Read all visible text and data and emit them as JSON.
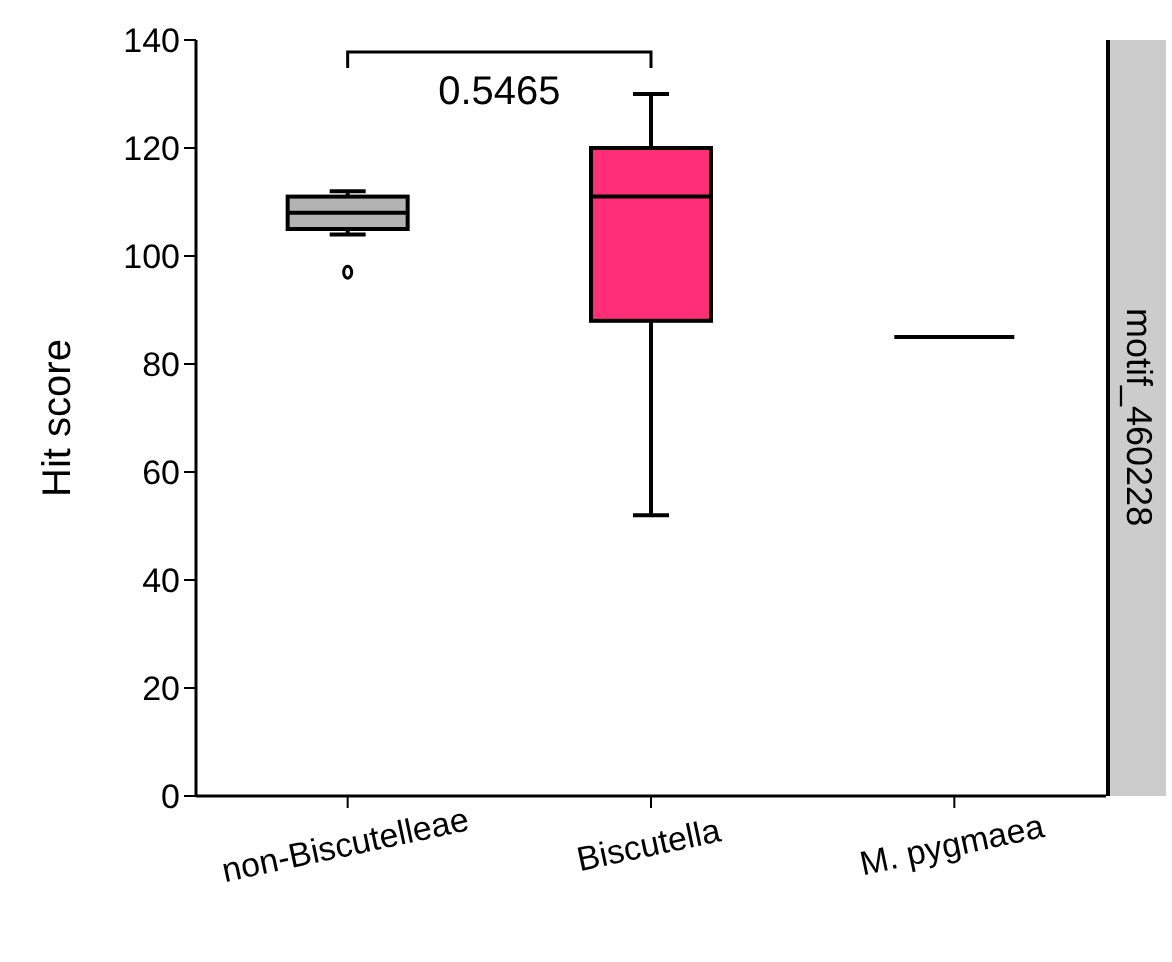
{
  "chart_data": {
    "type": "box",
    "ylabel": "Hit score",
    "categories": [
      "non-Biscutelleae",
      "Biscutella",
      "M. pygmaea"
    ],
    "colors": [
      "#b3b3b3",
      "#ff2e76",
      "#000000"
    ],
    "boxes": [
      {
        "low": 104,
        "q1": 105,
        "median": 108,
        "q3": 111,
        "high": 112,
        "outliers": [
          97
        ]
      },
      {
        "low": 52,
        "q1": 88,
        "median": 111,
        "q3": 120,
        "high": 130
      },
      {
        "low": 85,
        "q1": 85,
        "median": 85,
        "q3": 85,
        "high": 85
      }
    ],
    "ylim": [
      0,
      140
    ],
    "yticks": [
      0,
      20,
      40,
      60,
      80,
      100,
      120,
      140
    ],
    "annotations": [
      "0.5465",
      "motif_460228"
    ]
  }
}
